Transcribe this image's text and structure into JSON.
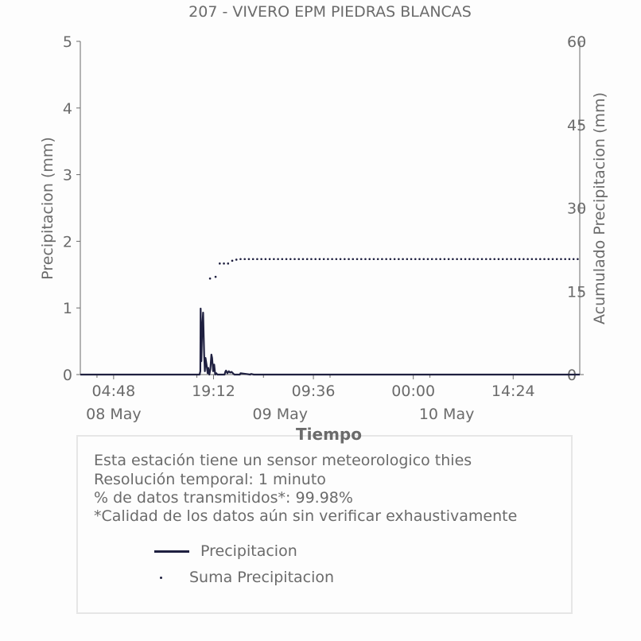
{
  "chart_data": {
    "type": "line",
    "title": "207 - VIVERO EPM PIEDRAS BLANCAS",
    "xlabel": "Tiempo",
    "ylabel": "Precipitacion (mm)",
    "y2label": "Acumulado Precipitacion (mm)",
    "xlim_hours": [
      0,
      72
    ],
    "ylim": [
      0,
      5
    ],
    "y2lim": [
      0,
      60
    ],
    "yticks": [
      "0",
      "1",
      "2",
      "3",
      "4",
      "5"
    ],
    "y2ticks": [
      "0",
      "15",
      "30",
      "45",
      "60"
    ],
    "xticks": [
      {
        "label": "04:48",
        "hours": 4.8
      },
      {
        "label": "19:12",
        "hours": 19.2
      },
      {
        "label": "09:36",
        "hours": 33.6
      },
      {
        "label": "00:00",
        "hours": 48
      },
      {
        "label": "14:24",
        "hours": 62.4
      }
    ],
    "xminorticks_hours": [
      2.4,
      16.8,
      26.4,
      36.0,
      50.4
    ],
    "date_labels": [
      {
        "label": "08 May",
        "hours": 2.4
      },
      {
        "label": "09 May",
        "hours": 26.4
      },
      {
        "label": "10 May",
        "hours": 50.4
      }
    ],
    "series": [
      {
        "name": "Precipitacion",
        "style": "line",
        "color": "#1f2040",
        "x": [
          0,
          17.2,
          17.3,
          17.35,
          17.45,
          17.55,
          17.7,
          17.85,
          17.95,
          18.05,
          18.2,
          18.35,
          18.45,
          18.6,
          18.75,
          18.9,
          19.0,
          19.15,
          19.3,
          19.45,
          19.6,
          19.75,
          20.0,
          20.8,
          20.9,
          21.0,
          21.2,
          21.4,
          21.6,
          21.8,
          22.2,
          23.0,
          23.1,
          24.5,
          24.6,
          25,
          72
        ],
        "y": [
          0,
          0,
          0.05,
          0.99,
          0.2,
          0.65,
          0.93,
          0.3,
          0.05,
          0.25,
          0.15,
          0.02,
          0.1,
          0.0,
          0.08,
          0.3,
          0.25,
          0.05,
          0.15,
          0.0,
          0.02,
          0.0,
          0.0,
          0.0,
          0.04,
          0.06,
          0.02,
          0.05,
          0.03,
          0.04,
          0.0,
          0.0,
          0.02,
          0.0,
          0.01,
          0,
          0
        ]
      },
      {
        "name": "Suma Precipitacion",
        "style": "dots",
        "color": "#1f2040",
        "x": [
          18.7,
          19.5,
          20.1,
          20.7,
          21.3,
          21.9,
          22.5
        ],
        "y": [
          17.3,
          17.6,
          20.0,
          20.0,
          20.0,
          20.5,
          20.7
        ],
        "flat_from_hours": 22.5,
        "flat_value": 20.8
      }
    ],
    "legend": [
      "Precipitacion",
      "Suma Precipitacion"
    ],
    "grid": false
  },
  "info": {
    "lines": [
      "Esta estación tiene un sensor meteorologico thies",
      "Resolución temporal: 1 minuto",
      "% de datos transmitidos*: 99.98%",
      "*Calidad de los datos aún sin verificar exhaustivamente"
    ],
    "legend_precip": "Precipitacion",
    "legend_suma": "Suma Precipitacion"
  }
}
